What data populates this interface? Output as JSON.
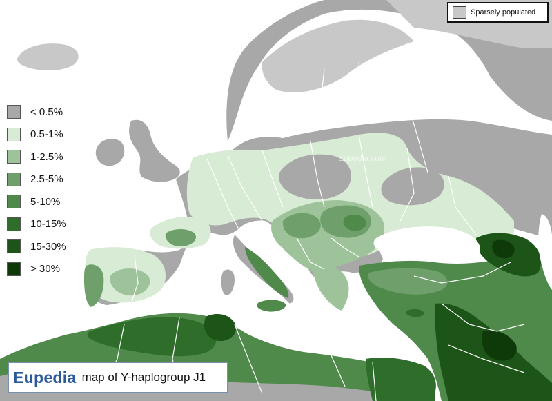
{
  "map": {
    "logo": "Eupedia",
    "caption": "map of Y-haplogroup J1",
    "watermark_center": "© Eupedia.com",
    "watermark_north": "Eupedia.com",
    "sparse_label": "Sparsely populated",
    "colors": {
      "sea": "#ffffff",
      "sparse": "#c8c8c8",
      "lt_0_5": "#a8a8a8",
      "c0_5_1": "#d8ebd4",
      "c1_2_5": "#9ec39a",
      "c2_5_5": "#6f9f6b",
      "c5_10": "#4f8a4b",
      "c10_15": "#2f6e2a",
      "c15_30": "#1d5418",
      "gt_30": "#0e3a0a"
    }
  },
  "legend": [
    {
      "label": "< 0.5%",
      "color": "#a8a8a8"
    },
    {
      "label": "0.5-1%",
      "color": "#d8ebd4"
    },
    {
      "label": "1-2.5%",
      "color": "#9ec39a"
    },
    {
      "label": "2.5-5%",
      "color": "#6f9f6b"
    },
    {
      "label": "5-10%",
      "color": "#4f8a4b"
    },
    {
      "label": "10-15%",
      "color": "#2f6e2a"
    },
    {
      "label": "15-30%",
      "color": "#1d5418"
    },
    {
      "label": "> 30%",
      "color": "#0e3a0a"
    }
  ]
}
